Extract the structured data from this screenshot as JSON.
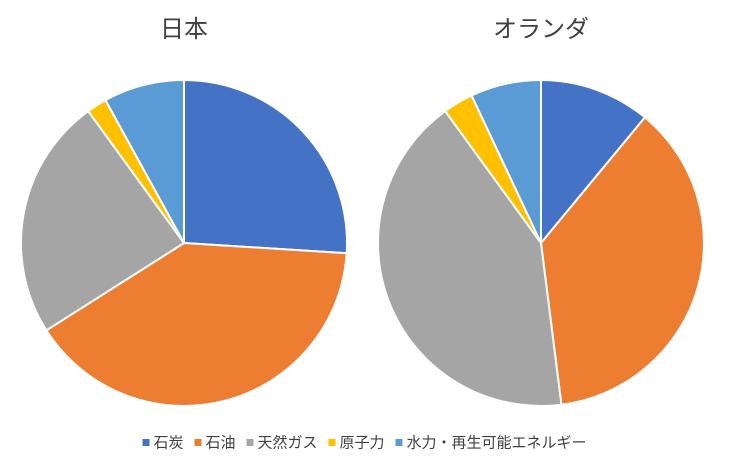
{
  "chart_data": [
    {
      "type": "pie",
      "title": "日本",
      "categories": [
        "石炭",
        "石油",
        "天然ガス",
        "原子力",
        "水力・再生可能エネルギー"
      ],
      "values": [
        26,
        40,
        24,
        2,
        8
      ],
      "colors": [
        "#4472c4",
        "#ed7d31",
        "#a5a5a5",
        "#ffc000",
        "#5b9bd5"
      ]
    },
    {
      "type": "pie",
      "title": "オランダ",
      "categories": [
        "石炭",
        "石油",
        "天然ガス",
        "原子力",
        "水力・再生可能エネルギー"
      ],
      "values": [
        11,
        37,
        42,
        3,
        7
      ],
      "colors": [
        "#4472c4",
        "#ed7d31",
        "#a5a5a5",
        "#ffc000",
        "#5b9bd5"
      ]
    }
  ]
}
